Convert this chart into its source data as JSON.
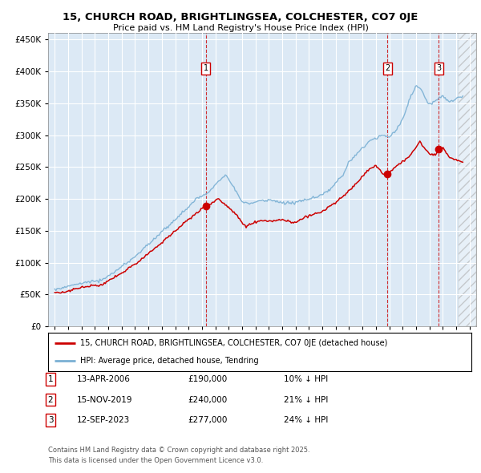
{
  "title": "15, CHURCH ROAD, BRIGHTLINGSEA, COLCHESTER, CO7 0JE",
  "subtitle": "Price paid vs. HM Land Registry's House Price Index (HPI)",
  "legend_label_red": "15, CHURCH ROAD, BRIGHTLINGSEA, COLCHESTER, CO7 0JE (detached house)",
  "legend_label_blue": "HPI: Average price, detached house, Tendring",
  "transactions": [
    {
      "num": 1,
      "date": "13-APR-2006",
      "price": "£190,000",
      "hpi_diff": "10% ↓ HPI",
      "year_x": 2006.28
    },
    {
      "num": 2,
      "date": "15-NOV-2019",
      "price": "£240,000",
      "hpi_diff": "21% ↓ HPI",
      "year_x": 2019.87
    },
    {
      "num": 3,
      "date": "12-SEP-2023",
      "price": "£277,000",
      "hpi_diff": "24% ↓ HPI",
      "year_x": 2023.7
    }
  ],
  "footnote1": "Contains HM Land Registry data © Crown copyright and database right 2025.",
  "footnote2": "This data is licensed under the Open Government Licence v3.0.",
  "ylim": [
    0,
    460000
  ],
  "xlim_start": 1994.5,
  "xlim_end": 2026.5,
  "data_end": 2025.2,
  "background_color": "#dce9f5",
  "red_color": "#cc0000",
  "blue_color": "#7ab0d4",
  "hatch_color": "#cccccc"
}
